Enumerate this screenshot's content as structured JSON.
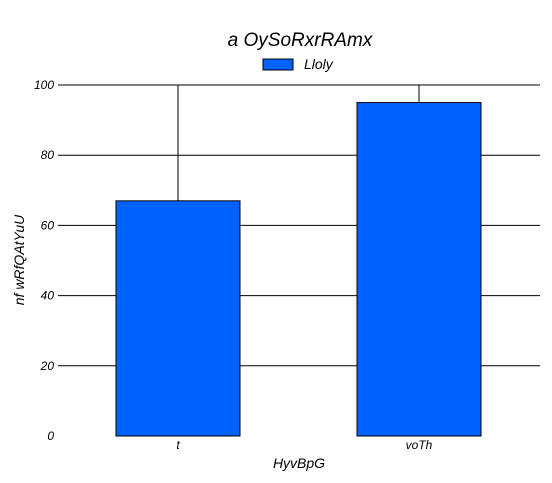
{
  "chart_data": {
    "type": "bar",
    "title": "a OySoRxrRAmx",
    "xlabel": "HyvBpG",
    "ylabel": "nf wRfQAtYuU",
    "categories": [
      "t",
      "voTh"
    ],
    "series": [
      {
        "name": "Lloly",
        "values": [
          67,
          95
        ],
        "color": "#0062ff"
      }
    ],
    "error_upper": [
      100,
      100
    ],
    "ylim": [
      0,
      100
    ],
    "yticks": [
      0,
      20,
      40,
      60,
      80,
      100
    ],
    "grid": true,
    "legend_position": "top-center"
  }
}
